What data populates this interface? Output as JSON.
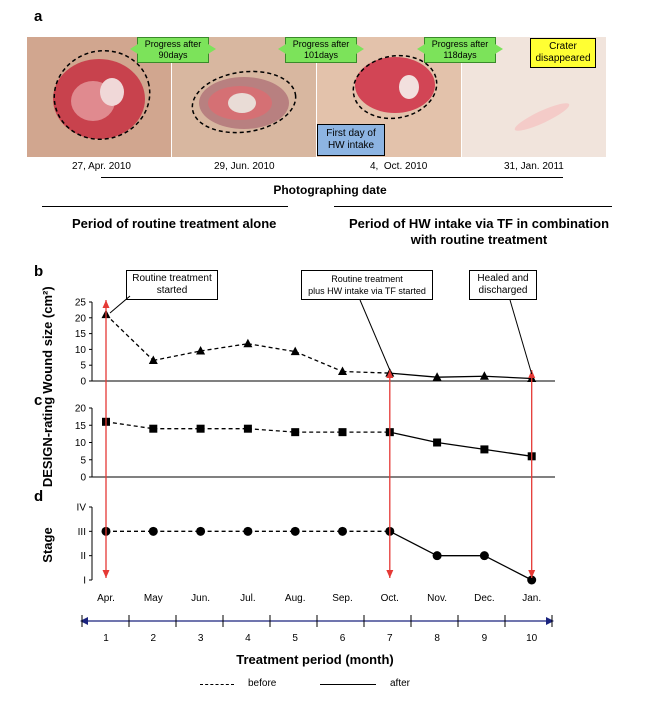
{
  "panel_a": {
    "letter": "a",
    "progress_labels": [
      "Progress after\n90days",
      "Progress after\n101days",
      "Progress after\n118days"
    ],
    "crater_label": "Crater\ndisappeared",
    "first_day_label": "First day of\nHW intake",
    "dates": [
      "27, Apr. 2010",
      "29, Jun. 2010",
      "4,  Oct. 2010",
      "31, Jan. 2011"
    ],
    "photo_date_title": "Photographing date",
    "period_routine": "Period of routine treatment alone",
    "period_hw": "Period of HW intake via TF in combination\nwith routine treatment",
    "colors": {
      "green_box": "#7CE35A",
      "yellow_box": "#FFFF33",
      "blue_box": "#8DB4E2"
    }
  },
  "panel_b": {
    "letter": "b",
    "callouts": [
      "Routine treatment\nstarted",
      "Routine treatment\nplus HW intake via TF started",
      "Healed and\ndischarged"
    ]
  },
  "panel_c": {
    "letter": "c"
  },
  "panel_d": {
    "letter": "d"
  },
  "legend": {
    "before": "before",
    "after": "after"
  },
  "chart_data": [
    {
      "type": "line",
      "ylabel": "Wound size (cm²)",
      "ylim": [
        0,
        25
      ],
      "yticks": [
        "0",
        "5",
        "10",
        "15",
        "20",
        "25"
      ],
      "x": [
        1,
        2,
        3,
        4,
        5,
        6,
        7,
        8,
        9,
        10
      ],
      "series": [
        {
          "marker": "triangle",
          "values": [
            21,
            6.5,
            9.5,
            11.8,
            9.3,
            3,
            2.5,
            1.2,
            1.5,
            0.8
          ]
        }
      ],
      "before_until_index": 6
    },
    {
      "type": "line",
      "ylabel": "DESIGN-rating",
      "ylim": [
        0,
        20
      ],
      "yticks": [
        "0",
        "5",
        "10",
        "15",
        "20"
      ],
      "x": [
        1,
        2,
        3,
        4,
        5,
        6,
        7,
        8,
        9,
        10
      ],
      "series": [
        {
          "marker": "square",
          "values": [
            16,
            14,
            14,
            14,
            13,
            13,
            13,
            10,
            8,
            6
          ]
        }
      ],
      "before_until_index": 6
    },
    {
      "type": "line",
      "ylabel": "Stage",
      "ylim": [
        1,
        4
      ],
      "yticks": [
        "I",
        "II",
        "III",
        "IV"
      ],
      "x": [
        1,
        2,
        3,
        4,
        5,
        6,
        7,
        8,
        9,
        10
      ],
      "series": [
        {
          "marker": "circle",
          "values": [
            3,
            3,
            3,
            3,
            3,
            3,
            3,
            2,
            2,
            1
          ]
        }
      ],
      "before_until_index": 6,
      "month_labels": [
        "Apr.",
        "May",
        "Jun.",
        "Jul.",
        "Aug.",
        "Sep.",
        "Oct.",
        "Nov.",
        "Dec.",
        "Jan."
      ],
      "period_ticks": [
        "1",
        "2",
        "3",
        "4",
        "5",
        "6",
        "7",
        "8",
        "9",
        "10"
      ],
      "xlabel": "Treatment period (month)"
    }
  ]
}
